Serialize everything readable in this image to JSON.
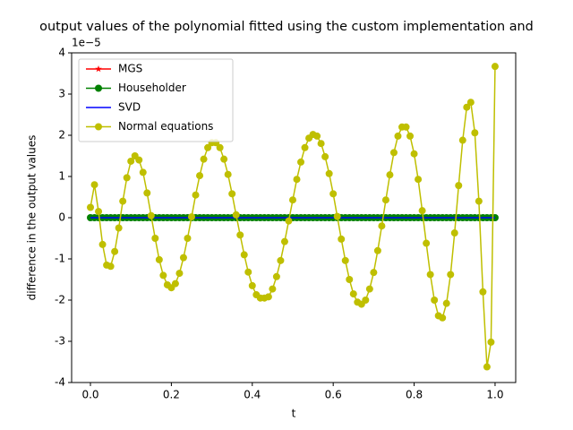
{
  "chart_data": {
    "type": "line",
    "title": "output values of the polynomial fitted using the custom implementation and",
    "xlabel": "t",
    "ylabel": "difference in the output values",
    "offset_label": "1e−5",
    "x": [
      0,
      0.01,
      0.02,
      0.03,
      0.04,
      0.05,
      0.06,
      0.07,
      0.08,
      0.09,
      0.1,
      0.11,
      0.12,
      0.13,
      0.14,
      0.15,
      0.16,
      0.17,
      0.18,
      0.19,
      0.2,
      0.21,
      0.22,
      0.23,
      0.24,
      0.25,
      0.26,
      0.27,
      0.28,
      0.29,
      0.3,
      0.31,
      0.32,
      0.33,
      0.34,
      0.35,
      0.36,
      0.37,
      0.38,
      0.39,
      0.4,
      0.41,
      0.42,
      0.43,
      0.44,
      0.45,
      0.46,
      0.47,
      0.48,
      0.49,
      0.5,
      0.51,
      0.52,
      0.53,
      0.54,
      0.55,
      0.56,
      0.57,
      0.58,
      0.59,
      0.6,
      0.61,
      0.62,
      0.63,
      0.64,
      0.65,
      0.66,
      0.67,
      0.68,
      0.69,
      0.7,
      0.71,
      0.72,
      0.73,
      0.74,
      0.75,
      0.76,
      0.77,
      0.78,
      0.79,
      0.8,
      0.81,
      0.82,
      0.83,
      0.84,
      0.85,
      0.86,
      0.87,
      0.88,
      0.89,
      0.9,
      0.91,
      0.92,
      0.93,
      0.94,
      0.95,
      0.96,
      0.97,
      0.98,
      0.99,
      1
    ],
    "series": [
      {
        "name": "MGS",
        "color": "#ff0000",
        "marker": "star",
        "values": [
          0,
          0,
          0,
          0,
          0,
          0,
          0,
          0,
          0,
          0,
          0,
          0,
          0,
          0,
          0,
          0,
          0,
          0,
          0,
          0,
          0,
          0,
          0,
          0,
          0,
          0,
          0,
          0,
          0,
          0,
          0,
          0,
          0,
          0,
          0,
          0,
          0,
          0,
          0,
          0,
          0,
          0,
          0,
          0,
          0,
          0,
          0,
          0,
          0,
          0,
          0,
          0,
          0,
          0,
          0,
          0,
          0,
          0,
          0,
          0,
          0,
          0,
          0,
          0,
          0,
          0,
          0,
          0,
          0,
          0,
          0,
          0,
          0,
          0,
          0,
          0,
          0,
          0,
          0,
          0,
          0,
          0,
          0,
          0,
          0,
          0,
          0,
          0,
          0,
          0,
          0,
          0,
          0,
          0,
          0,
          0,
          0,
          0,
          0,
          0,
          0
        ]
      },
      {
        "name": "Householder",
        "color": "#008000",
        "marker": "circle",
        "values": [
          0,
          0,
          0,
          0,
          0,
          0,
          0,
          0,
          0,
          0,
          0,
          0,
          0,
          0,
          0,
          0,
          0,
          0,
          0,
          0,
          0,
          0,
          0,
          0,
          0,
          0,
          0,
          0,
          0,
          0,
          0,
          0,
          0,
          0,
          0,
          0,
          0,
          0,
          0,
          0,
          0,
          0,
          0,
          0,
          0,
          0,
          0,
          0,
          0,
          0,
          0,
          0,
          0,
          0,
          0,
          0,
          0,
          0,
          0,
          0,
          0,
          0,
          0,
          0,
          0,
          0,
          0,
          0,
          0,
          0,
          0,
          0,
          0,
          0,
          0,
          0,
          0,
          0,
          0,
          0,
          0,
          0,
          0,
          0,
          0,
          0,
          0,
          0,
          0,
          0,
          0,
          0,
          0,
          0,
          0,
          0,
          0,
          0,
          0,
          0,
          0
        ]
      },
      {
        "name": "SVD",
        "color": "#0000ff",
        "marker": "none",
        "values": [
          0,
          0,
          0,
          0,
          0,
          0,
          0,
          0,
          0,
          0,
          0,
          0,
          0,
          0,
          0,
          0,
          0,
          0,
          0,
          0,
          0,
          0,
          0,
          0,
          0,
          0,
          0,
          0,
          0,
          0,
          0,
          0,
          0,
          0,
          0,
          0,
          0,
          0,
          0,
          0,
          0,
          0,
          0,
          0,
          0,
          0,
          0,
          0,
          0,
          0,
          0,
          0,
          0,
          0,
          0,
          0,
          0,
          0,
          0,
          0,
          0,
          0,
          0,
          0,
          0,
          0,
          0,
          0,
          0,
          0,
          0,
          0,
          0,
          0,
          0,
          0,
          0,
          0,
          0,
          0,
          0,
          0,
          0,
          0,
          0,
          0,
          0,
          0,
          0,
          0,
          0,
          0,
          0,
          0,
          0,
          0,
          0,
          0,
          0,
          0,
          0
        ]
      },
      {
        "name": "Normal equations",
        "color": "#bfbf00",
        "marker": "circle",
        "values": [
          0.25,
          0.8,
          0.15,
          -0.65,
          -1.15,
          -1.18,
          -0.82,
          -0.25,
          0.4,
          0.97,
          1.37,
          1.5,
          1.4,
          1.1,
          0.6,
          0.05,
          -0.5,
          -1.02,
          -1.4,
          -1.63,
          -1.7,
          -1.6,
          -1.35,
          -0.97,
          -0.5,
          0.02,
          0.55,
          1.02,
          1.42,
          1.7,
          1.82,
          1.82,
          1.7,
          1.42,
          1.05,
          0.58,
          0.07,
          -0.42,
          -0.9,
          -1.32,
          -1.65,
          -1.87,
          -1.95,
          -1.95,
          -1.92,
          -1.73,
          -1.43,
          -1.04,
          -0.58,
          -0.08,
          0.43,
          0.93,
          1.35,
          1.7,
          1.93,
          2.02,
          1.98,
          1.8,
          1.48,
          1.07,
          0.58,
          0.03,
          -0.52,
          -1.04,
          -1.5,
          -1.85,
          -2.05,
          -2.1,
          -2.0,
          -1.73,
          -1.33,
          -0.8,
          -0.2,
          0.43,
          1.04,
          1.58,
          1.98,
          2.2,
          2.2,
          1.98,
          1.55,
          0.93,
          0.17,
          -0.62,
          -1.38,
          -2.0,
          -2.38,
          -2.43,
          -2.08,
          -1.38,
          -0.37,
          0.78,
          1.88,
          2.68,
          2.8,
          2.06,
          0.4,
          -1.8,
          -3.62,
          -3.02,
          3.67
        ]
      }
    ],
    "xlim": [
      -0.0465,
      1.051
    ],
    "ylim": [
      -4,
      4
    ],
    "xticks": [
      {
        "value": 0,
        "label": "0.0"
      },
      {
        "value": 0.2,
        "label": "0.2"
      },
      {
        "value": 0.4,
        "label": "0.4"
      },
      {
        "value": 0.6,
        "label": "0.6"
      },
      {
        "value": 0.8,
        "label": "0.8"
      },
      {
        "value": 1,
        "label": "1.0"
      }
    ],
    "yticks": [
      -4,
      -3,
      -2,
      -1,
      0,
      1,
      2,
      3,
      4
    ],
    "legend": "upper left",
    "grid": false
  }
}
